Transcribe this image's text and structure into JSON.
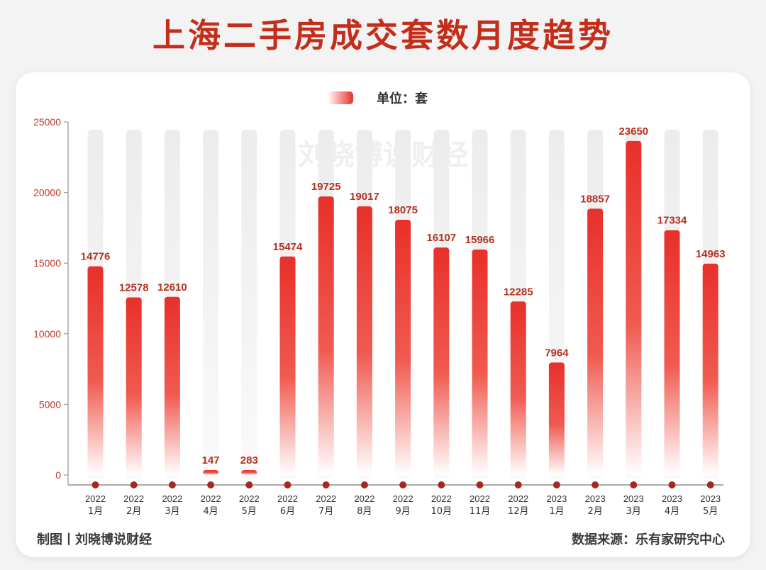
{
  "title": "上海二手房成交套数月度趋势",
  "footer": {
    "left": "制图丨刘晓博说财经",
    "right": "数据来源：乐有家研究中心"
  },
  "watermark": "刘晓博说财经",
  "colors": {
    "accent": "#e8302a",
    "title": "#c42d1a",
    "label": "#b5311f",
    "tick": "#c0392b",
    "background_bar": "#eeeeee",
    "dot": "#a8271b"
  },
  "chart_data": {
    "type": "bar",
    "categories": [
      [
        "2022",
        "1月"
      ],
      [
        "2022",
        "2月"
      ],
      [
        "2022",
        "3月"
      ],
      [
        "2022",
        "4月"
      ],
      [
        "2022",
        "5月"
      ],
      [
        "2022",
        "6月"
      ],
      [
        "2022",
        "7月"
      ],
      [
        "2022",
        "8月"
      ],
      [
        "2022",
        "9月"
      ],
      [
        "2022",
        "10月"
      ],
      [
        "2022",
        "11月"
      ],
      [
        "2022",
        "12月"
      ],
      [
        "2023",
        "1月"
      ],
      [
        "2023",
        "2月"
      ],
      [
        "2023",
        "3月"
      ],
      [
        "2023",
        "4月"
      ],
      [
        "2023",
        "5月"
      ]
    ],
    "series": [
      {
        "name": "单位：套",
        "values": [
          14776,
          12578,
          12610,
          147,
          283,
          15474,
          19725,
          19017,
          18075,
          16107,
          15966,
          12285,
          7964,
          18857,
          23650,
          17334,
          14963
        ]
      }
    ],
    "yticks": [
      0,
      5000,
      10000,
      15000,
      20000,
      25000
    ],
    "ylim": [
      0,
      25000
    ],
    "legend": "top-center",
    "grid": false,
    "data_labels": true
  }
}
